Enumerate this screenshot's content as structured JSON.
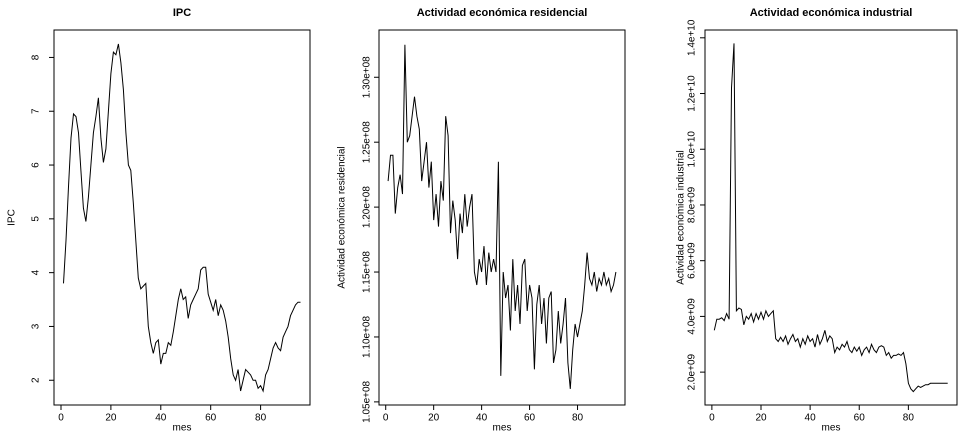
{
  "chart_data": [
    {
      "type": "line",
      "title": "IPC",
      "xlabel": "mes",
      "ylabel": "IPC",
      "color": "#000000",
      "grid": false,
      "x": [
        1,
        2,
        3,
        4,
        5,
        6,
        7,
        8,
        9,
        10,
        11,
        12,
        13,
        14,
        15,
        16,
        17,
        18,
        19,
        20,
        21,
        22,
        23,
        24,
        25,
        26,
        27,
        28,
        29,
        30,
        31,
        32,
        33,
        34,
        35,
        36,
        37,
        38,
        39,
        40,
        41,
        42,
        43,
        44,
        45,
        46,
        47,
        48,
        49,
        50,
        51,
        52,
        53,
        54,
        55,
        56,
        57,
        58,
        59,
        60,
        61,
        62,
        63,
        64,
        65,
        66,
        67,
        68,
        69,
        70,
        71,
        72,
        73,
        74,
        75,
        76,
        77,
        78,
        79,
        80,
        81,
        82,
        83,
        84,
        85,
        86,
        87,
        88,
        89,
        90,
        91,
        92,
        93,
        94,
        95,
        96
      ],
      "values": [
        3.8,
        4.6,
        5.6,
        6.5,
        6.95,
        6.9,
        6.6,
        5.9,
        5.2,
        4.95,
        5.4,
        6.0,
        6.6,
        6.9,
        7.25,
        6.5,
        6.05,
        6.3,
        7.0,
        7.7,
        8.1,
        8.05,
        8.25,
        7.9,
        7.4,
        6.6,
        6.0,
        5.9,
        5.3,
        4.6,
        3.9,
        3.7,
        3.75,
        3.8,
        3.0,
        2.7,
        2.5,
        2.7,
        2.75,
        2.3,
        2.5,
        2.5,
        2.7,
        2.65,
        2.9,
        3.2,
        3.5,
        3.7,
        3.5,
        3.55,
        3.15,
        3.4,
        3.5,
        3.6,
        3.7,
        4.05,
        4.1,
        4.1,
        3.6,
        3.45,
        3.3,
        3.5,
        3.2,
        3.4,
        3.3,
        3.1,
        2.8,
        2.4,
        2.1,
        2.0,
        2.2,
        1.8,
        2.0,
        2.2,
        2.15,
        2.1,
        2.0,
        2.0,
        1.85,
        1.9,
        1.8,
        2.1,
        2.2,
        2.4,
        2.6,
        2.7,
        2.6,
        2.55,
        2.8,
        2.9,
        3.0,
        3.2,
        3.3,
        3.4,
        3.45,
        3.45
      ],
      "xlim": [
        -2.8,
        99.8
      ],
      "xticks": [
        0,
        20,
        40,
        60,
        80
      ],
      "ylim": [
        1.54,
        8.51
      ],
      "yticks": [
        2,
        3,
        4,
        5,
        6,
        7,
        8
      ]
    },
    {
      "type": "line",
      "title": "Actividad económica residencial",
      "xlabel": "mes",
      "ylabel": "Actividad económica residencial",
      "color": "#000000",
      "grid": false,
      "x": [
        1,
        2,
        3,
        4,
        5,
        6,
        7,
        8,
        9,
        10,
        11,
        12,
        13,
        14,
        15,
        16,
        17,
        18,
        19,
        20,
        21,
        22,
        23,
        24,
        25,
        26,
        27,
        28,
        29,
        30,
        31,
        32,
        33,
        34,
        35,
        36,
        37,
        38,
        39,
        40,
        41,
        42,
        43,
        44,
        45,
        46,
        47,
        48,
        49,
        50,
        51,
        52,
        53,
        54,
        55,
        56,
        57,
        58,
        59,
        60,
        61,
        62,
        63,
        64,
        65,
        66,
        67,
        68,
        69,
        70,
        71,
        72,
        73,
        74,
        75,
        76,
        77,
        78,
        79,
        80,
        81,
        82,
        83,
        84,
        85,
        86,
        87,
        88,
        89,
        90,
        91,
        92,
        93,
        94,
        95,
        96
      ],
      "values": [
        122000000.0,
        124000000.0,
        124000000.0,
        119500000.0,
        121500000.0,
        122500000.0,
        121000000.0,
        132500000.0,
        125000000.0,
        125500000.0,
        127000000.0,
        128500000.0,
        127000000.0,
        126000000.0,
        122000000.0,
        123500000.0,
        125000000.0,
        121500000.0,
        123500000.0,
        119000000.0,
        121000000.0,
        118500000.0,
        122000000.0,
        120500000.0,
        127000000.0,
        125500000.0,
        118000000.0,
        120500000.0,
        119000000.0,
        116000000.0,
        119500000.0,
        118000000.0,
        121000000.0,
        118500000.0,
        120000000.0,
        121000000.0,
        115000000.0,
        114000000.0,
        116000000.0,
        115000000.0,
        117000000.0,
        114000000.0,
        116500000.0,
        115000000.0,
        116000000.0,
        115000000.0,
        123500000.0,
        107000000.0,
        115000000.0,
        113000000.0,
        114000000.0,
        110500000.0,
        116000000.0,
        112000000.0,
        114000000.0,
        111000000.0,
        115500000.0,
        116000000.0,
        112000000.0,
        114000000.0,
        113000000.0,
        107500000.0,
        112500000.0,
        114000000.0,
        111000000.0,
        113000000.0,
        109500000.0,
        113000000.0,
        113500000.0,
        108000000.0,
        109000000.0,
        112000000.0,
        109500000.0,
        111000000.0,
        113000000.0,
        108000000.0,
        106000000.0,
        109000000.0,
        111000000.0,
        110000000.0,
        111000000.0,
        112000000.0,
        114000000.0,
        116500000.0,
        114500000.0,
        114000000.0,
        115000000.0,
        113500000.0,
        114500000.0,
        114000000.0,
        115000000.0,
        114000000.0,
        114500000.0,
        113500000.0,
        114000000.0,
        115000000.0
      ],
      "xlim": [
        -2.8,
        99.8
      ],
      "xticks": [
        0,
        20,
        40,
        60,
        80
      ],
      "ylim": [
        104760000.0,
        133640000.0
      ],
      "yticks": [
        {
          "value": 105000000.0,
          "label": "1.05e+08"
        },
        {
          "value": 110000000.0,
          "label": "1.10e+08"
        },
        {
          "value": 115000000.0,
          "label": "1.15e+08"
        },
        {
          "value": 120000000.0,
          "label": "1.20e+08"
        },
        {
          "value": 125000000.0,
          "label": "1.25e+08"
        },
        {
          "value": 130000000.0,
          "label": "1.30e+08"
        }
      ]
    },
    {
      "type": "line",
      "title": "Actividad económica industrial",
      "xlabel": "mes",
      "ylabel": "Actividad económica industrial",
      "color": "#000000",
      "grid": false,
      "x": [
        1,
        2,
        3,
        4,
        5,
        6,
        7,
        8,
        9,
        10,
        11,
        12,
        13,
        14,
        15,
        16,
        17,
        18,
        19,
        20,
        21,
        22,
        23,
        24,
        25,
        26,
        27,
        28,
        29,
        30,
        31,
        32,
        33,
        34,
        35,
        36,
        37,
        38,
        39,
        40,
        41,
        42,
        43,
        44,
        45,
        46,
        47,
        48,
        49,
        50,
        51,
        52,
        53,
        54,
        55,
        56,
        57,
        58,
        59,
        60,
        61,
        62,
        63,
        64,
        65,
        66,
        67,
        68,
        69,
        70,
        71,
        72,
        73,
        74,
        75,
        76,
        77,
        78,
        79,
        80,
        81,
        82,
        83,
        84,
        85,
        86,
        87,
        88,
        89,
        90,
        91,
        92,
        93,
        94,
        95,
        96
      ],
      "values": [
        3500000000.0,
        3900000000.0,
        3900000000.0,
        3950000000.0,
        3850000000.0,
        4100000000.0,
        3900000000.0,
        12200000000.0,
        13800000000.0,
        4200000000.0,
        4300000000.0,
        4250000000.0,
        3700000000.0,
        4000000000.0,
        3900000000.0,
        4100000000.0,
        3800000000.0,
        4100000000.0,
        3900000000.0,
        4150000000.0,
        3900000000.0,
        4200000000.0,
        4000000000.0,
        4100000000.0,
        4200000000.0,
        3200000000.0,
        3100000000.0,
        3250000000.0,
        3100000000.0,
        3300000000.0,
        3000000000.0,
        3200000000.0,
        3350000000.0,
        3100000000.0,
        3200000000.0,
        2900000000.0,
        3200000000.0,
        3000000000.0,
        3300000000.0,
        3100000000.0,
        3200000000.0,
        2900000000.0,
        3350000000.0,
        3000000000.0,
        3200000000.0,
        3500000000.0,
        3100000000.0,
        3300000000.0,
        3200000000.0,
        2700000000.0,
        2900000000.0,
        2800000000.0,
        3000000000.0,
        2900000000.0,
        3100000000.0,
        2800000000.0,
        2700000000.0,
        2900000000.0,
        2750000000.0,
        2900000000.0,
        2600000000.0,
        2800000000.0,
        2900000000.0,
        2700000000.0,
        3000000000.0,
        2800000000.0,
        2700000000.0,
        2900000000.0,
        2950000000.0,
        2900000000.0,
        2600000000.0,
        2700000000.0,
        2500000000.0,
        2600000000.0,
        2600000000.0,
        2650000000.0,
        2600000000.0,
        2700000000.0,
        2300000000.0,
        1600000000.0,
        1400000000.0,
        1300000000.0,
        1400000000.0,
        1500000000.0,
        1450000000.0,
        1500000000.0,
        1550000000.0,
        1550000000.0,
        1600000000.0,
        1600000000.0,
        1600000000.0,
        1600000000.0,
        1600000000.0,
        1600000000.0,
        1600000000.0,
        1600000000.0
      ],
      "xlim": [
        -2.8,
        99.8
      ],
      "xticks": [
        0,
        20,
        40,
        60,
        80
      ],
      "ylim": [
        820000000.0,
        14280000000.0
      ],
      "yticks": [
        {
          "value": 2000000000.0,
          "label": "2.0e+09"
        },
        {
          "value": 4000000000.0,
          "label": "4.0e+09"
        },
        {
          "value": 6000000000.0,
          "label": "6.0e+09"
        },
        {
          "value": 8000000000.0,
          "label": "8.0e+09"
        },
        {
          "value": 10000000000.0,
          "label": "1.0e+10"
        },
        {
          "value": 12000000000.0,
          "label": "1.2e+10"
        },
        {
          "value": 14000000000.0,
          "label": "1.4e+10"
        }
      ]
    }
  ]
}
